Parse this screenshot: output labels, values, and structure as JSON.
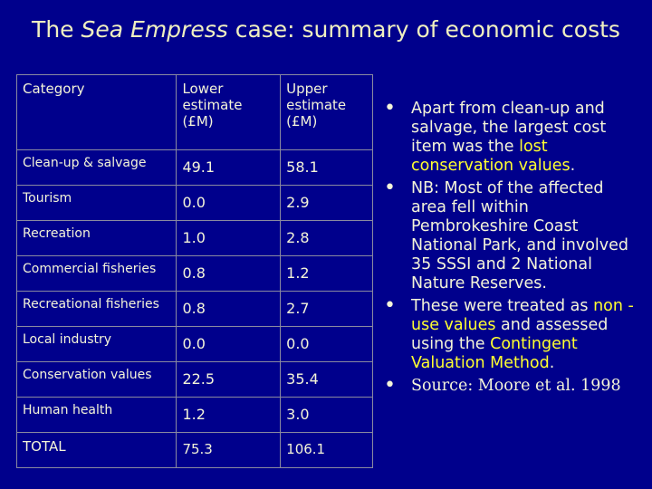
{
  "title": [
    "The ",
    "Sea Empress",
    " case: summary of economic costs"
  ],
  "table": {
    "header": [
      "Category",
      "Lower estimate (£M)",
      "Upper estimate (£M)"
    ],
    "rows": [
      [
        "Clean-up & salvage",
        "49.1",
        "58.1"
      ],
      [
        "Tourism",
        "0.0",
        "2.9"
      ],
      [
        "Recreation",
        "1.0",
        "2.8"
      ],
      [
        "Commercial fisheries",
        "0.8",
        "1.2"
      ],
      [
        "Recreational fisheries",
        "0.8",
        "2.7"
      ],
      [
        "Local industry",
        "0.0",
        "0.0"
      ],
      [
        "Conservation values",
        "22.5",
        "35.4"
      ],
      [
        "Human health",
        "1.2",
        "3.0"
      ],
      [
        "TOTAL",
        "75.3",
        "106.1"
      ]
    ]
  },
  "bullets": [
    [
      "Apart from clean-up and salvage, the largest cost item was the ",
      "lost conservation values",
      "."
    ],
    [
      "NB: Most of the affected area  fell within Pembrokeshire Coast National Park, and involved 35 SSSI and 2 National Nature Reserves."
    ],
    [
      "These were treated as ",
      "non -use values",
      " and assessed using the ",
      "Contingent Valuation Method",
      "."
    ],
    [
      "Source: Moore et al. 1998"
    ]
  ]
}
